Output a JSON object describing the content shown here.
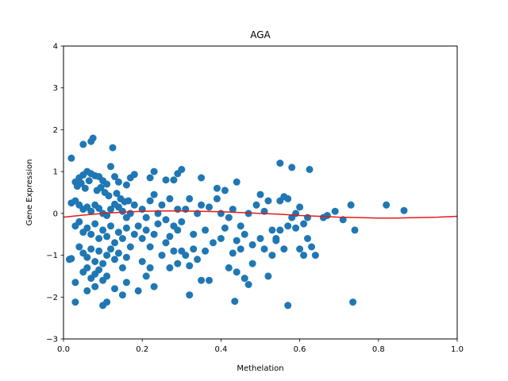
{
  "chart_data": {
    "type": "scatter",
    "title": "AGA",
    "xlabel": "Methelation",
    "ylabel": "Gene Expression",
    "xlim": [
      0.0,
      1.0
    ],
    "ylim": [
      -3,
      4
    ],
    "xticks": [
      "0.0",
      "0.2",
      "0.4",
      "0.6",
      "0.8",
      "1.0"
    ],
    "yticks": [
      "−3",
      "−2",
      "−1",
      "0",
      "1",
      "2",
      "3",
      "4"
    ],
    "xtick_values": [
      0.0,
      0.2,
      0.4,
      0.6,
      0.8,
      1.0
    ],
    "ytick_values": [
      -3,
      -2,
      -1,
      0,
      1,
      2,
      3,
      4
    ],
    "grid": false,
    "point_color": "#1f77b4",
    "line_color": "#e41a1c",
    "fit_line": {
      "x": [
        0.0,
        0.05,
        0.1,
        0.15,
        0.2,
        0.25,
        0.3,
        0.35,
        0.4,
        0.45,
        0.5,
        0.55,
        0.6,
        0.65,
        0.7,
        0.75,
        0.8,
        0.85,
        0.9,
        0.95,
        1.0
      ],
      "y": [
        -0.09,
        -0.04,
        0.0,
        0.03,
        0.05,
        0.06,
        0.06,
        0.05,
        0.04,
        0.02,
        0.0,
        -0.02,
        -0.05,
        -0.07,
        -0.09,
        -0.1,
        -0.11,
        -0.11,
        -0.1,
        -0.09,
        -0.07
      ]
    },
    "points": [
      [
        0.02,
        1.32
      ],
      [
        0.05,
        1.65
      ],
      [
        0.07,
        1.72
      ],
      [
        0.075,
        1.8
      ],
      [
        0.125,
        1.57
      ],
      [
        0.03,
        0.75
      ],
      [
        0.04,
        0.85
      ],
      [
        0.05,
        0.92
      ],
      [
        0.06,
        1.0
      ],
      [
        0.07,
        0.95
      ],
      [
        0.08,
        0.9
      ],
      [
        0.09,
        0.88
      ],
      [
        0.1,
        0.78
      ],
      [
        0.11,
        0.7
      ],
      [
        0.12,
        1.12
      ],
      [
        0.13,
        0.88
      ],
      [
        0.14,
        0.75
      ],
      [
        0.16,
        0.68
      ],
      [
        0.17,
        0.85
      ],
      [
        0.18,
        0.93
      ],
      [
        0.035,
        0.65
      ],
      [
        0.045,
        0.72
      ],
      [
        0.055,
        0.6
      ],
      [
        0.065,
        0.78
      ],
      [
        0.085,
        0.55
      ],
      [
        0.095,
        0.62
      ],
      [
        0.105,
        0.5
      ],
      [
        0.115,
        0.42
      ],
      [
        0.135,
        0.48
      ],
      [
        0.145,
        0.35
      ],
      [
        0.155,
        0.28
      ],
      [
        0.165,
        0.3
      ],
      [
        0.02,
        0.25
      ],
      [
        0.03,
        0.3
      ],
      [
        0.04,
        0.2
      ],
      [
        0.05,
        0.1
      ],
      [
        0.06,
        0.15
      ],
      [
        0.07,
        0.05
      ],
      [
        0.08,
        0.2
      ],
      [
        0.09,
        0.12
      ],
      [
        0.1,
        0.0
      ],
      [
        0.11,
        -0.05
      ],
      [
        0.12,
        0.1
      ],
      [
        0.13,
        0.22
      ],
      [
        0.14,
        0.15
      ],
      [
        0.15,
        0.05
      ],
      [
        0.16,
        -0.1
      ],
      [
        0.17,
        0.0
      ],
      [
        0.18,
        0.2
      ],
      [
        0.03,
        -0.3
      ],
      [
        0.04,
        -0.2
      ],
      [
        0.05,
        -0.45
      ],
      [
        0.06,
        -0.35
      ],
      [
        0.07,
        -0.5
      ],
      [
        0.08,
        -0.25
      ],
      [
        0.09,
        -0.6
      ],
      [
        0.1,
        -0.4
      ],
      [
        0.11,
        -0.55
      ],
      [
        0.12,
        -0.3
      ],
      [
        0.13,
        -0.7
      ],
      [
        0.14,
        -0.45
      ],
      [
        0.15,
        -0.6
      ],
      [
        0.16,
        -0.35
      ],
      [
        0.17,
        -0.8
      ],
      [
        0.18,
        -0.5
      ],
      [
        0.19,
        -0.3
      ],
      [
        0.04,
        -0.8
      ],
      [
        0.05,
        -0.95
      ],
      [
        0.06,
        -1.05
      ],
      [
        0.07,
        -0.85
      ],
      [
        0.08,
        -1.15
      ],
      [
        0.09,
        -0.9
      ],
      [
        0.1,
        -1.2
      ],
      [
        0.11,
        -1.0
      ],
      [
        0.12,
        -0.85
      ],
      [
        0.13,
        -1.1
      ],
      [
        0.14,
        -0.95
      ],
      [
        0.15,
        -1.3
      ],
      [
        0.16,
        -1.05
      ],
      [
        0.05,
        -1.4
      ],
      [
        0.06,
        -1.3
      ],
      [
        0.07,
        -1.55
      ],
      [
        0.08,
        -1.45
      ],
      [
        0.09,
        -1.35
      ],
      [
        0.1,
        -1.6
      ],
      [
        0.11,
        -1.5
      ],
      [
        0.03,
        -1.65
      ],
      [
        0.06,
        -1.85
      ],
      [
        0.08,
        -1.75
      ],
      [
        0.13,
        -1.8
      ],
      [
        0.16,
        -1.65
      ],
      [
        0.15,
        -1.95
      ],
      [
        0.03,
        -2.12
      ],
      [
        0.1,
        -2.2
      ],
      [
        0.11,
        -2.12
      ],
      [
        0.02,
        -1.08
      ],
      [
        0.015,
        -1.1
      ],
      [
        0.2,
        0.1
      ],
      [
        0.21,
        -0.1
      ],
      [
        0.22,
        0.3
      ],
      [
        0.23,
        0.45
      ],
      [
        0.24,
        0.0
      ],
      [
        0.25,
        0.2
      ],
      [
        0.26,
        -0.15
      ],
      [
        0.27,
        0.35
      ],
      [
        0.28,
        -0.3
      ],
      [
        0.29,
        0.1
      ],
      [
        0.2,
        -0.6
      ],
      [
        0.21,
        -0.4
      ],
      [
        0.22,
        -0.8
      ],
      [
        0.23,
        -0.5
      ],
      [
        0.24,
        -0.25
      ],
      [
        0.25,
        -1.0
      ],
      [
        0.26,
        -0.7
      ],
      [
        0.27,
        -0.55
      ],
      [
        0.28,
        -0.9
      ],
      [
        0.29,
        -0.4
      ],
      [
        0.2,
        -1.15
      ],
      [
        0.21,
        -1.5
      ],
      [
        0.22,
        -1.3
      ],
      [
        0.19,
        -1.85
      ],
      [
        0.23,
        -1.75
      ],
      [
        0.27,
        -1.3
      ],
      [
        0.29,
        -1.2
      ],
      [
        0.3,
        -0.2
      ],
      [
        0.31,
        0.1
      ],
      [
        0.32,
        0.35
      ],
      [
        0.33,
        -0.5
      ],
      [
        0.34,
        0.0
      ],
      [
        0.35,
        0.2
      ],
      [
        0.36,
        -0.4
      ],
      [
        0.37,
        0.15
      ],
      [
        0.38,
        -0.7
      ],
      [
        0.39,
        0.35
      ],
      [
        0.3,
        -0.9
      ],
      [
        0.31,
        -1.0
      ],
      [
        0.32,
        -1.25
      ],
      [
        0.33,
        -0.85
      ],
      [
        0.34,
        -1.1
      ],
      [
        0.35,
        -1.6
      ],
      [
        0.36,
        -0.9
      ],
      [
        0.37,
        -1.6
      ],
      [
        0.32,
        -1.95
      ],
      [
        0.22,
        0.85
      ],
      [
        0.23,
        1.0
      ],
      [
        0.26,
        0.8
      ],
      [
        0.28,
        0.8
      ],
      [
        0.29,
        0.95
      ],
      [
        0.3,
        1.05
      ],
      [
        0.35,
        0.85
      ],
      [
        0.39,
        0.6
      ],
      [
        0.41,
        0.55
      ],
      [
        0.44,
        0.75
      ],
      [
        0.4,
        0.0
      ],
      [
        0.41,
        -0.35
      ],
      [
        0.42,
        -0.1
      ],
      [
        0.43,
        0.1
      ],
      [
        0.44,
        -0.65
      ],
      [
        0.45,
        -0.3
      ],
      [
        0.46,
        -0.5
      ],
      [
        0.47,
        0.0
      ],
      [
        0.48,
        -0.75
      ],
      [
        0.49,
        0.2
      ],
      [
        0.4,
        -0.6
      ],
      [
        0.42,
        -1.3
      ],
      [
        0.43,
        -0.95
      ],
      [
        0.44,
        -1.4
      ],
      [
        0.45,
        -0.85
      ],
      [
        0.46,
        -1.55
      ],
      [
        0.47,
        -1.7
      ],
      [
        0.48,
        -1.2
      ],
      [
        0.5,
        0.45
      ],
      [
        0.51,
        0.05
      ],
      [
        0.52,
        0.3
      ],
      [
        0.53,
        -0.4
      ],
      [
        0.54,
        -0.6
      ],
      [
        0.55,
        0.3
      ],
      [
        0.56,
        0.4
      ],
      [
        0.57,
        -0.3
      ],
      [
        0.58,
        -0.1
      ],
      [
        0.59,
        0.0
      ],
      [
        0.5,
        -0.6
      ],
      [
        0.51,
        -0.85
      ],
      [
        0.52,
        -1.5
      ],
      [
        0.53,
        -1.0
      ],
      [
        0.54,
        -0.65
      ],
      [
        0.55,
        -0.4
      ],
      [
        0.56,
        -0.85
      ],
      [
        0.57,
        0.35
      ],
      [
        0.55,
        1.2
      ],
      [
        0.58,
        1.1
      ],
      [
        0.625,
        1.05
      ],
      [
        0.6,
        0.15
      ],
      [
        0.61,
        -0.25
      ],
      [
        0.62,
        -0.1
      ],
      [
        0.63,
        -0.8
      ],
      [
        0.64,
        -1.0
      ],
      [
        0.66,
        -0.1
      ],
      [
        0.67,
        -0.05
      ],
      [
        0.69,
        0.05
      ],
      [
        0.71,
        -0.15
      ],
      [
        0.73,
        0.2
      ],
      [
        0.74,
        -0.4
      ],
      [
        0.6,
        -0.85
      ],
      [
        0.61,
        -1.0
      ],
      [
        0.62,
        -0.6
      ],
      [
        0.59,
        -0.35
      ],
      [
        0.435,
        -2.1
      ],
      [
        0.57,
        -2.2
      ],
      [
        0.735,
        -2.12
      ],
      [
        0.82,
        0.2
      ],
      [
        0.865,
        0.07
      ]
    ]
  }
}
